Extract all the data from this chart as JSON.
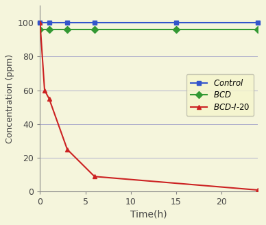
{
  "control_x": [
    0,
    1,
    3,
    6,
    15,
    24
  ],
  "control_y": [
    100,
    100,
    100,
    100,
    100,
    100
  ],
  "bcd_x": [
    0,
    1,
    3,
    6,
    15,
    24
  ],
  "bcd_y": [
    96,
    96,
    96,
    96,
    96,
    96
  ],
  "bcdi_x": [
    0,
    0.5,
    1,
    3,
    6,
    24
  ],
  "bcdi_y": [
    100,
    60,
    55,
    25,
    9,
    1
  ],
  "control_color": "#3355cc",
  "bcd_color": "#339933",
  "bcdi_color": "#cc2222",
  "bg_color": "#f5f5dc",
  "legend_bg": "#f5f5cc",
  "xlabel": "Time（h）",
  "ylabel": "Concentration（ppm）",
  "xlim": [
    0,
    24
  ],
  "ylim": [
    0,
    110
  ],
  "yticks": [
    0,
    20,
    40,
    60,
    80,
    100
  ],
  "xticks": [
    0,
    5,
    10,
    15,
    20
  ],
  "grid_color": "#b0b0cc",
  "label_control": "Control",
  "label_bcd": "BCD",
  "label_bcdi": "BCD-I-20"
}
